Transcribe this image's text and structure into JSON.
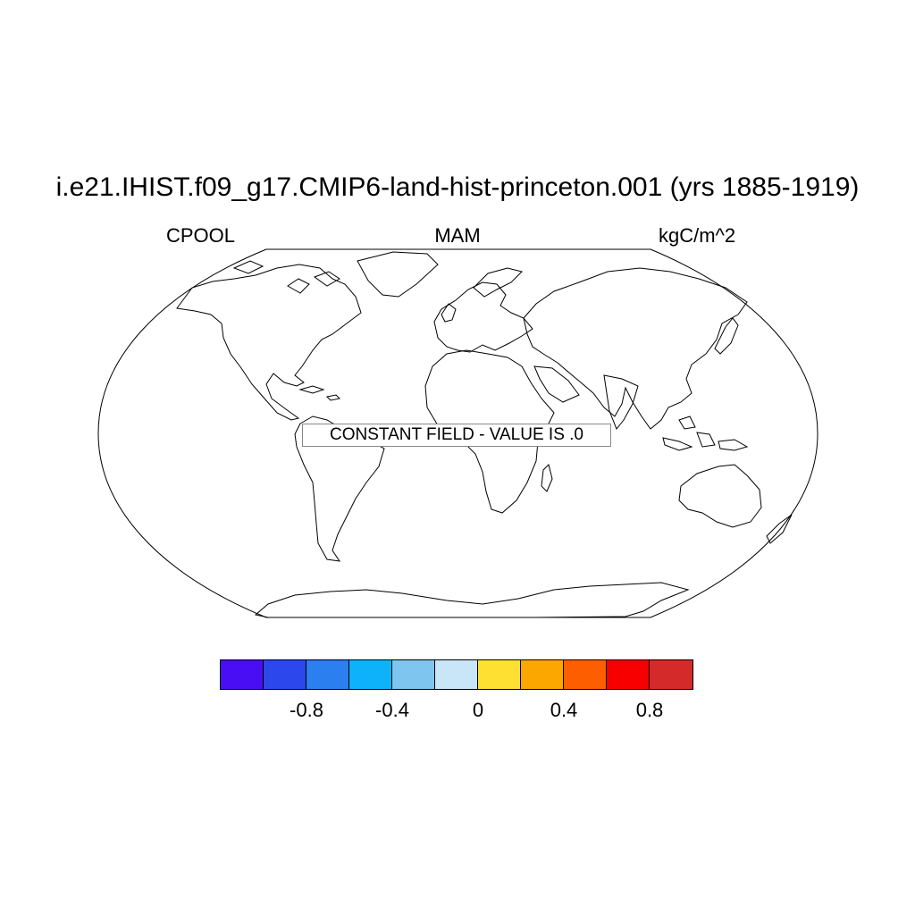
{
  "header": {
    "title": "i.e21.IHIST.f09_g17.CMIP6-land-hist-princeton.001 (yrs 1885-1919)",
    "variable": "CPOOL",
    "season": "MAM",
    "units": "kgC/m^2"
  },
  "map": {
    "projection": "Robinson",
    "notice": "CONSTANT FIELD - VALUE IS .0"
  },
  "colorbar": {
    "colors": [
      "#4a0ef5",
      "#2c48ec",
      "#2b7fee",
      "#0db2fb",
      "#7ec6ef",
      "#c9e6f8",
      "#fde032",
      "#fca700",
      "#fd5e00",
      "#f90000",
      "#d52a2a"
    ],
    "labels": [
      "-0.8",
      "-0.4",
      "0",
      "0.4",
      "0.8"
    ]
  }
}
